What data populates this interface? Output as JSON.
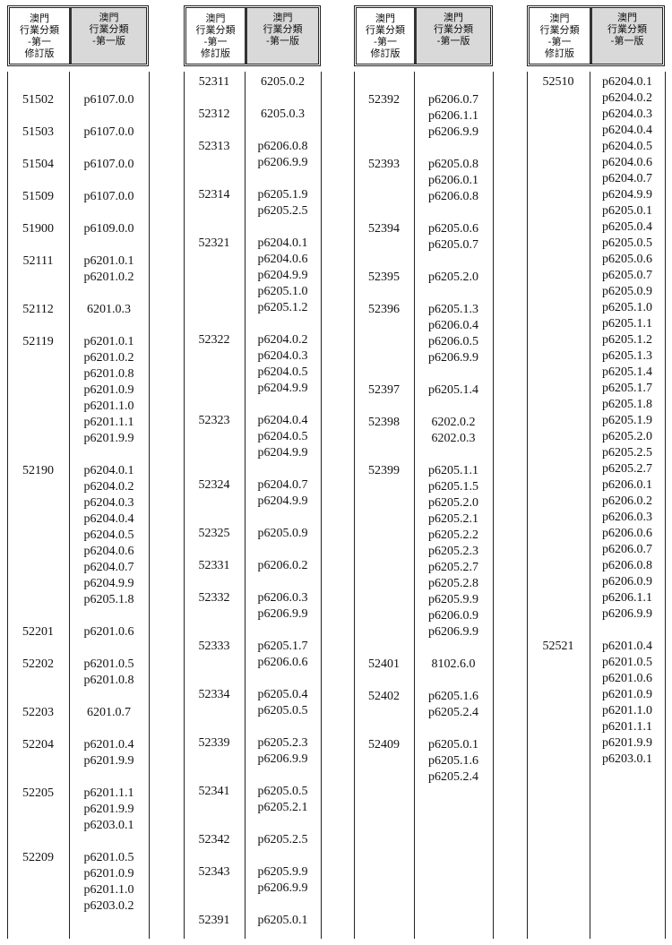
{
  "header": {
    "col1": [
      "澳門",
      "行業分類",
      "-第一",
      "修訂版"
    ],
    "col2": [
      "澳門",
      "行業分類",
      "-第一版"
    ]
  },
  "panels": [
    {
      "rows": [
        {
          "code": "51502",
          "values": [
            "p6107.0.0"
          ]
        },
        {
          "code": "51503",
          "values": [
            "p6107.0.0"
          ]
        },
        {
          "code": "51504",
          "values": [
            "p6107.0.0"
          ]
        },
        {
          "code": "51509",
          "values": [
            "p6107.0.0"
          ]
        },
        {
          "code": "51900",
          "values": [
            "p6109.0.0"
          ]
        },
        {
          "code": "52111",
          "values": [
            "p6201.0.1",
            "p6201.0.2"
          ]
        },
        {
          "code": "52112",
          "values": [
            "6201.0.3"
          ]
        },
        {
          "code": "52119",
          "values": [
            "p6201.0.1",
            "p6201.0.2",
            "p6201.0.8",
            "p6201.0.9",
            "p6201.1.0",
            "p6201.1.1",
            "p6201.9.9"
          ]
        },
        {
          "code": "52190",
          "values": [
            "p6204.0.1",
            "p6204.0.2",
            "p6204.0.3",
            "p6204.0.4",
            "p6204.0.5",
            "p6204.0.6",
            "p6204.0.7",
            "p6204.9.9",
            "p6205.1.8"
          ]
        },
        {
          "code": "52201",
          "values": [
            "p6201.0.6"
          ]
        },
        {
          "code": "52202",
          "values": [
            "p6201.0.5",
            "p6201.0.8"
          ]
        },
        {
          "code": "52203",
          "values": [
            "6201.0.7"
          ]
        },
        {
          "code": "52204",
          "values": [
            "p6201.0.4",
            "p6201.9.9"
          ]
        },
        {
          "code": "52205",
          "values": [
            "p6201.1.1",
            "p6201.9.9",
            "p6203.0.1"
          ]
        },
        {
          "code": "52209",
          "values": [
            "p6201.0.5",
            "p6201.0.9",
            "p6201.1.0",
            "p6203.0.2"
          ]
        }
      ]
    },
    {
      "rows": [
        {
          "code": "52311",
          "values": [
            "6205.0.2"
          ]
        },
        {
          "code": "52312",
          "values": [
            "6205.0.3"
          ]
        },
        {
          "code": "52313",
          "values": [
            "p6206.0.8",
            "p6206.9.9"
          ]
        },
        {
          "code": "52314",
          "values": [
            "p6205.1.9",
            "p6205.2.5"
          ]
        },
        {
          "code": "52321",
          "values": [
            "p6204.0.1",
            "p6204.0.6",
            "p6204.9.9",
            "p6205.1.0",
            "p6205.1.2"
          ]
        },
        {
          "code": "52322",
          "values": [
            "p6204.0.2",
            "p6204.0.3",
            "p6204.0.5",
            "p6204.9.9"
          ]
        },
        {
          "code": "52323",
          "values": [
            "p6204.0.4",
            "p6204.0.5",
            "p6204.9.9"
          ]
        },
        {
          "code": "52324",
          "values": [
            "p6204.0.7",
            "p6204.9.9"
          ]
        },
        {
          "code": "52325",
          "values": [
            "p6205.0.9"
          ]
        },
        {
          "code": "52331",
          "values": [
            "p6206.0.2"
          ]
        },
        {
          "code": "52332",
          "values": [
            "p6206.0.3",
            "p6206.9.9"
          ]
        },
        {
          "code": "52333",
          "values": [
            "p6205.1.7",
            "p6206.0.6"
          ]
        },
        {
          "code": "52334",
          "values": [
            "p6205.0.4",
            "p6205.0.5"
          ]
        },
        {
          "code": "52339",
          "values": [
            "p6205.2.3",
            "p6206.9.9"
          ]
        },
        {
          "code": "52341",
          "values": [
            "p6205.0.5",
            "p6205.2.1"
          ]
        },
        {
          "code": "52342",
          "values": [
            "p6205.2.5"
          ]
        },
        {
          "code": "52343",
          "values": [
            "p6205.9.9",
            "p6206.9.9"
          ]
        },
        {
          "code": "52391",
          "values": [
            "p6205.0.1"
          ]
        }
      ]
    },
    {
      "rows": [
        {
          "code": "52392",
          "values": [
            "p6206.0.7",
            "p6206.1.1",
            "p6206.9.9"
          ]
        },
        {
          "code": "52393",
          "values": [
            "p6205.0.8",
            "p6206.0.1",
            "p6206.0.8"
          ]
        },
        {
          "code": "52394",
          "values": [
            "p6205.0.6",
            "p6205.0.7"
          ]
        },
        {
          "code": "52395",
          "values": [
            "p6205.2.0"
          ]
        },
        {
          "code": "52396",
          "values": [
            "p6205.1.3",
            "p6206.0.4",
            "p6206.0.5",
            "p6206.9.9"
          ]
        },
        {
          "code": "52397",
          "values": [
            "p6205.1.4"
          ]
        },
        {
          "code": "52398",
          "values": [
            "6202.0.2",
            "6202.0.3"
          ]
        },
        {
          "code": "52399",
          "values": [
            "p6205.1.1",
            "p6205.1.5",
            "p6205.2.0",
            "p6205.2.1",
            "p6205.2.2",
            "p6205.2.3",
            "p6205.2.7",
            "p6205.2.8",
            "p6205.9.9",
            "p6206.0.9",
            "p6206.9.9"
          ]
        },
        {
          "code": "52401",
          "values": [
            "8102.6.0"
          ]
        },
        {
          "code": "52402",
          "values": [
            "p6205.1.6",
            "p6205.2.4"
          ]
        },
        {
          "code": "52409",
          "values": [
            "p6205.0.1",
            "p6205.1.6",
            "p6205.2.4"
          ]
        }
      ]
    },
    {
      "rows": [
        {
          "code": "52510",
          "values": [
            "p6204.0.1",
            "p6204.0.2",
            "p6204.0.3",
            "p6204.0.4",
            "p6204.0.5",
            "p6204.0.6",
            "p6204.0.7",
            "p6204.9.9",
            "p6205.0.1",
            "p6205.0.4",
            "p6205.0.5",
            "p6205.0.6",
            "p6205.0.7",
            "p6205.0.9",
            "p6205.1.0",
            "p6205.1.1",
            "p6205.1.2",
            "p6205.1.3",
            "p6205.1.4",
            "p6205.1.7",
            "p6205.1.8",
            "p6205.1.9",
            "p6205.2.0",
            "p6205.2.5",
            "p6205.2.7",
            "p6206.0.1",
            "p6206.0.2",
            "p6206.0.3",
            "p6206.0.6",
            "p6206.0.7",
            "p6206.0.8",
            "p6206.0.9",
            "p6206.1.1",
            "p6206.9.9"
          ]
        },
        {
          "code": "52521",
          "values": [
            "p6201.0.4",
            "p6201.0.5",
            "p6201.0.6",
            "p6201.0.9",
            "p6201.1.0",
            "p6201.1.1",
            "p6201.9.9",
            "p6203.0.1"
          ]
        }
      ]
    }
  ]
}
